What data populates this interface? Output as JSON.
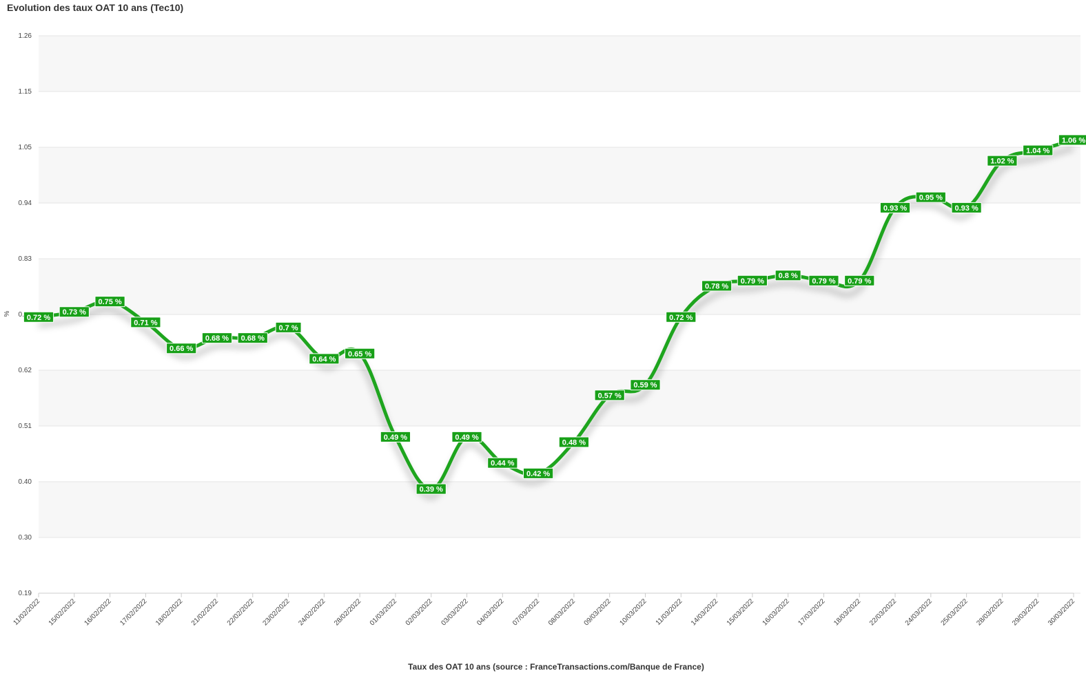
{
  "chart_data": {
    "type": "line",
    "title": "Evolution des taux OAT 10 ans (Tec10)",
    "xlabel": "Taux des OAT 10 ans (source : FranceTransactions.com/Banque de France)",
    "ylabel": "%",
    "ylim": [
      0.19,
      1.26
    ],
    "yticks": [
      "1.26",
      "1.15",
      "1.05",
      "0.94",
      "0.83",
      "0.72",
      "0.62",
      "0.51",
      "0.40",
      "0.30",
      "0.19"
    ],
    "grid": true,
    "legend": "none",
    "value_suffix": " %",
    "line_color": "#1ea51e",
    "label_bg": "#18a018",
    "band_color": "#f7f7f7",
    "categories": [
      "11/02/2022",
      "15/02/2022",
      "16/02/2022",
      "17/02/2022",
      "18/02/2022",
      "21/02/2022",
      "22/02/2022",
      "23/02/2022",
      "24/02/2022",
      "28/02/2022",
      "01/03/2022",
      "02/03/2022",
      "03/03/2022",
      "04/03/2022",
      "07/03/2022",
      "08/03/2022",
      "09/03/2022",
      "10/03/2022",
      "11/03/2022",
      "14/03/2022",
      "15/03/2022",
      "16/03/2022",
      "17/03/2022",
      "18/03/2022",
      "22/03/2022",
      "24/03/2022",
      "25/03/2022",
      "28/03/2022",
      "29/03/2022",
      "30/03/2022"
    ],
    "values": [
      0.72,
      0.73,
      0.75,
      0.71,
      0.66,
      0.68,
      0.68,
      0.7,
      0.64,
      0.65,
      0.49,
      0.39,
      0.49,
      0.44,
      0.42,
      0.48,
      0.57,
      0.59,
      0.72,
      0.78,
      0.79,
      0.8,
      0.79,
      0.79,
      0.93,
      0.95,
      0.93,
      1.02,
      1.04,
      1.06
    ]
  }
}
